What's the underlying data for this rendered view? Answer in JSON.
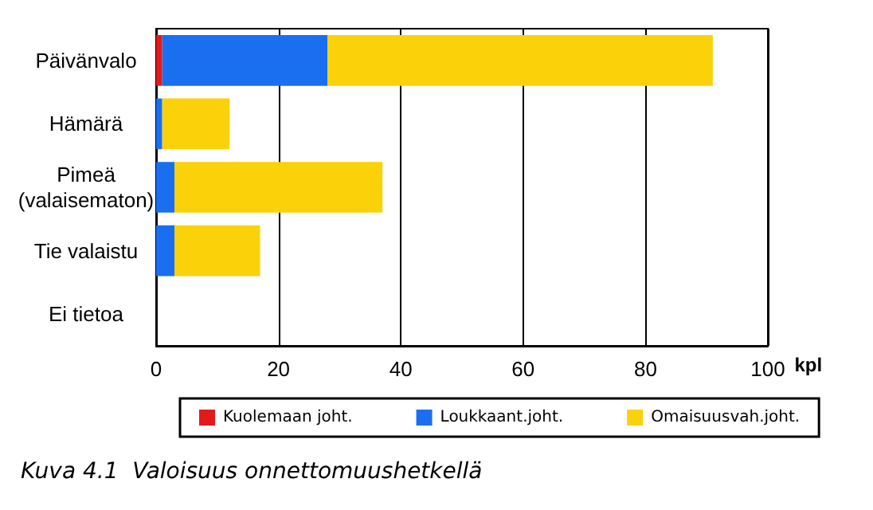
{
  "chart_data": {
    "type": "bar",
    "orientation": "horizontal",
    "stacked": true,
    "title": "Kuva 4.1  Valoisuus onnettomuushetkellä",
    "xlabel": "kpl",
    "categories": [
      "Päivänvalo",
      "Hämärä",
      "Pimeä\n(valaisematon)",
      "Tie valaistu",
      "Ei tietoa"
    ],
    "series": [
      {
        "name": "Kuolemaan joht.",
        "color": "#e31a1c",
        "values": [
          1,
          0,
          0,
          0,
          0
        ]
      },
      {
        "name": "Loukkaant.joht.",
        "color": "#1a6ff0",
        "values": [
          27,
          1,
          3,
          3,
          0
        ]
      },
      {
        "name": "Omaisuusvah.joht.",
        "color": "#fbd20a",
        "values": [
          63,
          11,
          34,
          14,
          0
        ]
      }
    ],
    "xlim": [
      0,
      100
    ],
    "xticks": [
      0,
      20,
      40,
      60,
      80,
      100
    ],
    "grid": "x",
    "legend": "bottom"
  }
}
